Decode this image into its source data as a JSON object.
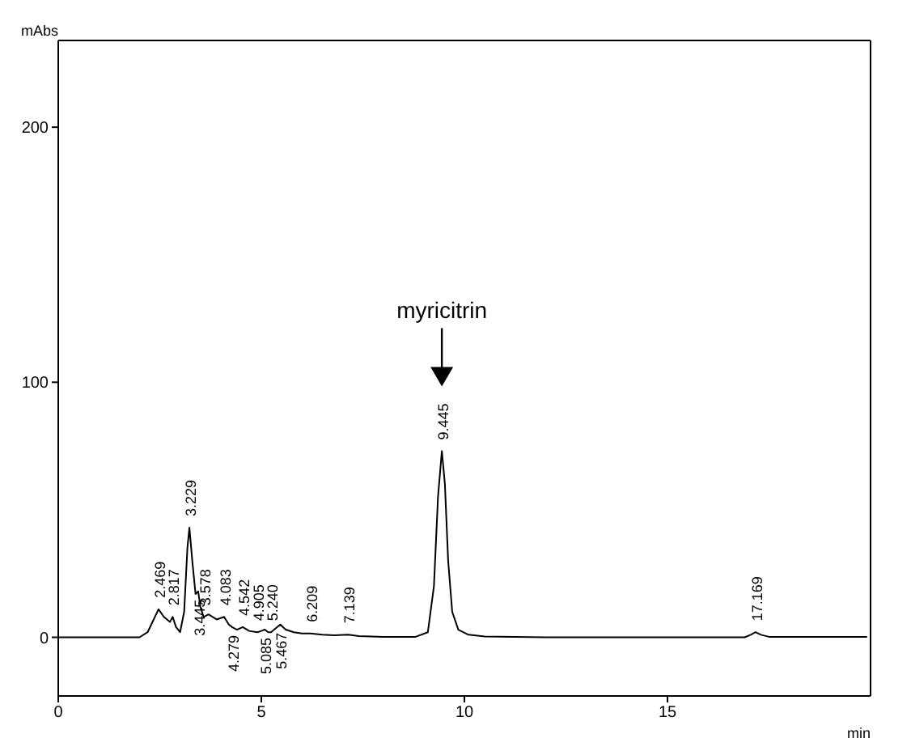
{
  "chart_data": {
    "type": "line",
    "xlabel": "min",
    "ylabel": "mAbs",
    "x": [
      0,
      2.0,
      2.2,
      2.35,
      2.469,
      2.6,
      2.75,
      2.817,
      2.9,
      3.0,
      3.1,
      3.18,
      3.229,
      3.3,
      3.38,
      3.445,
      3.5,
      3.578,
      3.7,
      3.9,
      4.083,
      4.2,
      4.279,
      4.4,
      4.542,
      4.7,
      4.905,
      5.0,
      5.085,
      5.17,
      5.24,
      5.35,
      5.467,
      5.6,
      5.8,
      6.0,
      6.209,
      6.5,
      6.8,
      7.139,
      7.4,
      8.0,
      8.8,
      9.1,
      9.25,
      9.35,
      9.445,
      9.52,
      9.6,
      9.7,
      9.85,
      10.1,
      10.5,
      12.0,
      16.9,
      17.05,
      17.169,
      17.3,
      17.5,
      19.9
    ],
    "series": [
      {
        "color": "#000000",
        "values": [
          0,
          0,
          2,
          7,
          11,
          8,
          6,
          8,
          4,
          2,
          10,
          35,
          43,
          30,
          17,
          18,
          12,
          8,
          9,
          7,
          8,
          5,
          4,
          3,
          4,
          2.5,
          2,
          2.5,
          3,
          2,
          2,
          3.5,
          5,
          3,
          2,
          1.5,
          1.5,
          1,
          0.8,
          1,
          0.5,
          0.2,
          0.2,
          2,
          20,
          55,
          73,
          60,
          30,
          10,
          3,
          1,
          0.3,
          0,
          0,
          1,
          2,
          1,
          0.2,
          0.2
        ]
      }
    ],
    "xlim": [
      0,
      20
    ],
    "ylim": [
      -23,
      234
    ],
    "xticks": [
      0,
      5,
      10,
      15
    ],
    "yticks": [
      0,
      100,
      200
    ],
    "marker": "none",
    "line_style": "solid",
    "annotations": [
      {
        "text": "2.469",
        "x": 2.469,
        "y": 11
      },
      {
        "text": "2.817",
        "x": 2.817,
        "y": 8
      },
      {
        "text": "3.229",
        "x": 3.229,
        "y": 43
      },
      {
        "text": "3.445",
        "x": 3.445,
        "y": 18
      },
      {
        "text": "3.578",
        "x": 3.578,
        "y": 8
      },
      {
        "text": "4.083",
        "x": 4.083,
        "y": 8
      },
      {
        "text": "4.279",
        "x": 4.279,
        "y": 4
      },
      {
        "text": "4.542",
        "x": 4.542,
        "y": 4
      },
      {
        "text": "4.905",
        "x": 4.905,
        "y": 2
      },
      {
        "text": "5.085",
        "x": 5.085,
        "y": 3
      },
      {
        "text": "5.240",
        "x": 5.24,
        "y": 2
      },
      {
        "text": "5.467",
        "x": 5.467,
        "y": 5
      },
      {
        "text": "6.209",
        "x": 6.209,
        "y": 1.5
      },
      {
        "text": "7.139",
        "x": 7.139,
        "y": 1
      },
      {
        "text": "9.445",
        "x": 9.445,
        "y": 73
      },
      {
        "text": "17.169",
        "x": 17.169,
        "y": 2
      },
      "myricitrin"
    ]
  }
}
